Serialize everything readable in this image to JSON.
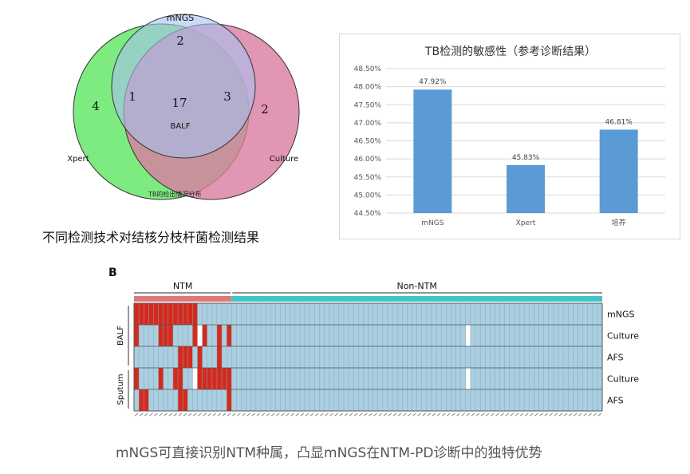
{
  "venn": {
    "sets": [
      {
        "name": "mNGS",
        "color": "#a7c1f2"
      },
      {
        "name": "Xpert",
        "color": "#66e86a"
      },
      {
        "name": "Culture",
        "color": "#d97ca0"
      }
    ],
    "regions": {
      "xpert_only": "4",
      "mngs_only": "2",
      "culture_only": "2",
      "xpert_mngs": "1",
      "mngs_culture": "3",
      "all_three": "17"
    },
    "center_label": "BALF",
    "caption": "TB的检出情况分布"
  },
  "left_caption": "不同检测技术对结核分枝杆菌检测结果",
  "chart_data": [
    {
      "type": "bar",
      "title": "TB检测的敏感性（参考诊断结果）",
      "categories": [
        "mNGS",
        "Xpert",
        "培养"
      ],
      "values": [
        47.92,
        45.83,
        46.81
      ],
      "data_labels": [
        "47.92%",
        "45.83%",
        "46.81%"
      ],
      "ylim": [
        44.5,
        48.5
      ],
      "yticks": [
        "44.50%",
        "45.00%",
        "45.50%",
        "46.00%",
        "46.50%",
        "47.00%",
        "47.50%",
        "48.00%",
        "48.50%"
      ],
      "bar_color": "#5b9bd5",
      "grid": true,
      "xlabel": "",
      "ylabel": ""
    },
    {
      "type": "heatmap",
      "panel_label": "B",
      "groups": [
        {
          "name": "NTM",
          "color": "#e07777"
        },
        {
          "name": "Non-NTM",
          "color": "#3ec6c6"
        }
      ],
      "row_labels": [
        "mNGS",
        "Culture",
        "AFS",
        "Culture",
        "AFS"
      ],
      "row_groups": [
        {
          "name": "BALF"
        },
        {
          "name": "Sputum"
        }
      ],
      "positive_color": "#d42a1e",
      "negative_color": "#a9cfe0",
      "missing_color": "#ffffff"
    }
  ],
  "bottom_caption": "mNGS可直接识别NTM种属，凸显mNGS在NTM-PD诊断中的独特优势"
}
